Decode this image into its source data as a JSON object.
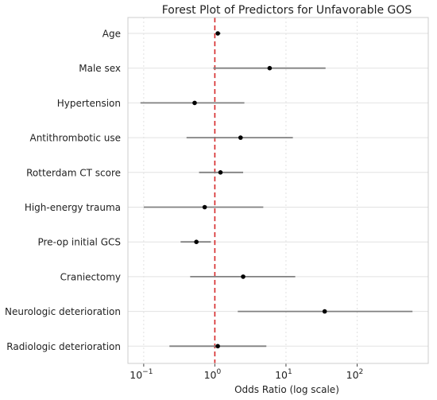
{
  "chart_data": {
    "type": "forest",
    "title": "Forest Plot of Predictors for Unfavorable GOS",
    "xlabel": "Odds Ratio (log scale)",
    "ylabel": "",
    "x_scale": "log",
    "xlim": [
      0.06,
      1000
    ],
    "x_ticks": [
      {
        "value": 0.1,
        "base": "10",
        "exp": "−1"
      },
      {
        "value": 1,
        "base": "10",
        "exp": "0"
      },
      {
        "value": 10,
        "base": "10",
        "exp": "1"
      },
      {
        "value": 100,
        "base": "10",
        "exp": "2"
      }
    ],
    "reference_line": 1,
    "grid": true,
    "legend": "none",
    "colors": {
      "point": "#000000",
      "ci": "#808080",
      "reference": "#d62728",
      "grid": "#e2e2e2"
    },
    "predictors": [
      {
        "label": "Age",
        "or": 1.1,
        "ci_low": 1.05,
        "ci_high": 1.2
      },
      {
        "label": "Male sex",
        "or": 5.9,
        "ci_low": 0.95,
        "ci_high": 36
      },
      {
        "label": "Hypertension",
        "or": 0.52,
        "ci_low": 0.09,
        "ci_high": 2.6
      },
      {
        "label": "Antithrombotic use",
        "or": 2.3,
        "ci_low": 0.4,
        "ci_high": 12.5
      },
      {
        "label": "Rotterdam CT score",
        "or": 1.2,
        "ci_low": 0.6,
        "ci_high": 2.5
      },
      {
        "label": "High-energy trauma",
        "or": 0.72,
        "ci_low": 0.1,
        "ci_high": 4.8
      },
      {
        "label": "Pre-op initial GCS",
        "or": 0.55,
        "ci_low": 0.33,
        "ci_high": 0.88
      },
      {
        "label": "Craniectomy",
        "or": 2.5,
        "ci_low": 0.45,
        "ci_high": 13.5
      },
      {
        "label": "Neurologic deterioration",
        "or": 35,
        "ci_low": 2.1,
        "ci_high": 600
      },
      {
        "label": "Radiologic deterioration",
        "or": 1.1,
        "ci_low": 0.23,
        "ci_high": 5.3
      }
    ]
  }
}
